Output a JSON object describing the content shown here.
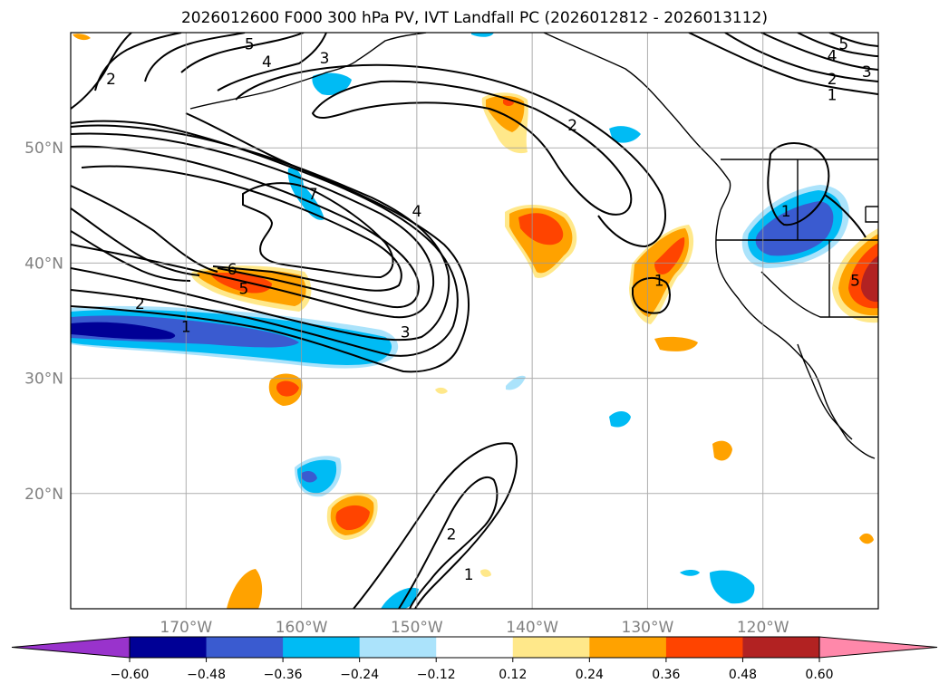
{
  "chart_data": {
    "type": "contour-map",
    "title": "2026012600 F000 300 hPa PV, IVT Landfall PC (2026012812 - 2026013112)",
    "map_extent": {
      "lon_min": -180,
      "lon_max": -110,
      "lat_min": 10,
      "lat_max": 60
    },
    "lat_ticks": [
      {
        "lat": 50,
        "label": "50°N"
      },
      {
        "lat": 40,
        "label": "40°N"
      },
      {
        "lat": 30,
        "label": "30°N"
      },
      {
        "lat": 20,
        "label": "20°N"
      }
    ],
    "lon_ticks": [
      {
        "lon": -170,
        "label": "170°W"
      },
      {
        "lon": -160,
        "label": "160°W"
      },
      {
        "lon": -150,
        "label": "150°W"
      },
      {
        "lon": -140,
        "label": "140°W"
      },
      {
        "lon": -130,
        "label": "130°W"
      },
      {
        "lon": -120,
        "label": "120°W"
      }
    ],
    "colorbar": {
      "levels": [
        -0.6,
        -0.48,
        -0.36,
        -0.24,
        -0.12,
        0.12,
        0.24,
        0.36,
        0.48,
        0.6
      ],
      "tick_labels": [
        "−0.60",
        "−0.48",
        "−0.36",
        "−0.24",
        "−0.12",
        "0.12",
        "0.24",
        "0.36",
        "0.48",
        "0.60"
      ],
      "colors": [
        "#9933cc",
        "#000096",
        "#3a5bd0",
        "#00bbf4",
        "#abe3fb",
        "#ffffff",
        "#ffe88a",
        "#ffa200",
        "#ff4400",
        "#b22222",
        "#ff88aa"
      ],
      "extend": "both"
    },
    "pv_contour_labels": [
      {
        "text": "1",
        "lon": -170,
        "lat": 34.5
      },
      {
        "text": "2",
        "lon": -174,
        "lat": 36.5
      },
      {
        "text": "3",
        "lon": -151,
        "lat": 34
      },
      {
        "text": "4",
        "lon": -150,
        "lat": 44.5
      },
      {
        "text": "5",
        "lon": -165,
        "lat": 37.8
      },
      {
        "text": "6",
        "lon": -166,
        "lat": 39.5
      },
      {
        "text": "7",
        "lon": -159,
        "lat": 46
      },
      {
        "text": "2",
        "lon": -136.5,
        "lat": 52
      },
      {
        "text": "2",
        "lon": -147,
        "lat": 16.5
      },
      {
        "text": "1",
        "lon": -145.5,
        "lat": 13
      },
      {
        "text": "1",
        "lon": -129,
        "lat": 38.5
      },
      {
        "text": "1",
        "lon": -118,
        "lat": 44.5
      },
      {
        "text": "5",
        "lon": -112,
        "lat": 38.5
      },
      {
        "text": "2",
        "lon": -176.5,
        "lat": 56
      },
      {
        "text": "5",
        "lon": -164.5,
        "lat": 59
      },
      {
        "text": "4",
        "lon": -163,
        "lat": 57.5
      },
      {
        "text": "3",
        "lon": -158,
        "lat": 57.8
      },
      {
        "text": "5",
        "lon": -113,
        "lat": 59
      },
      {
        "text": "4",
        "lon": -114,
        "lat": 58
      },
      {
        "text": "3",
        "lon": -111,
        "lat": 56.6
      },
      {
        "text": "2",
        "lon": -114,
        "lat": 56
      },
      {
        "text": "1",
        "lon": -114,
        "lat": 54.6
      }
    ],
    "pc_anomaly_regions": [
      {
        "name": "subtropical-negative-band",
        "lon": [
          -180,
          -152
        ],
        "lat": [
          31.5,
          37
        ],
        "min_value": -0.6
      },
      {
        "name": "ne-pacific-positive",
        "lon": [
          -142,
          -137
        ],
        "lat": [
          38,
          44
        ],
        "max_value": 0.48
      },
      {
        "name": "offshore-california-positive",
        "lon": [
          -131,
          -126
        ],
        "lat": [
          35,
          42
        ],
        "max_value": 0.48
      },
      {
        "name": "great-basin-negative",
        "lon": [
          -121,
          -112
        ],
        "lat": [
          40,
          47
        ],
        "min_value": -0.48
      },
      {
        "name": "central-pacific-positive",
        "lon": [
          -166,
          -155
        ],
        "lat": [
          36.5,
          40
        ],
        "max_value": 0.48
      },
      {
        "name": "hawaii-positive",
        "lon": [
          -157,
          -153
        ],
        "lat": [
          16,
          20
        ],
        "max_value": 0.48
      },
      {
        "name": "hawaii-negative",
        "lon": [
          -162,
          -157
        ],
        "lat": [
          19.5,
          23
        ],
        "min_value": -0.48
      },
      {
        "name": "gulf-of-alaska-positive",
        "lon": [
          -144,
          -140
        ],
        "lat": [
          50,
          56
        ],
        "max_value": 0.48
      },
      {
        "name": "southwest-us-positive",
        "lon": [
          -114,
          -110
        ],
        "lat": [
          33,
          39
        ],
        "max_value": 0.6
      }
    ]
  }
}
